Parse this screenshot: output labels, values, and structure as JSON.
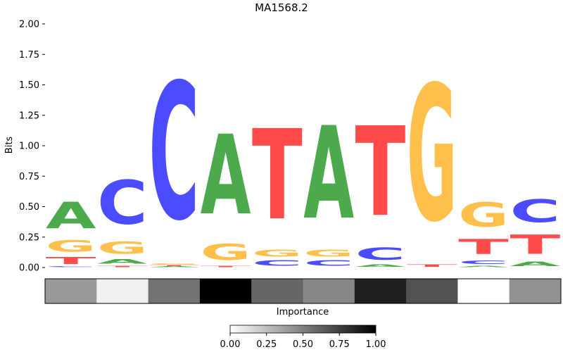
{
  "chart_data": {
    "type": "sequence-logo",
    "title": "MA1568.2",
    "ylabel": "Bits",
    "ylim": [
      0,
      2.0
    ],
    "yticks": [
      "0.00",
      "0.25",
      "0.50",
      "0.75",
      "1.00",
      "1.25",
      "1.50",
      "1.75",
      "2.00"
    ],
    "colors": {
      "A": "#4caa4c",
      "C": "#4b4bff",
      "G": "#ffbf4b",
      "T": "#ff4b4b"
    },
    "positions": [
      {
        "stack": [
          {
            "base": "C",
            "height": 0.01
          },
          {
            "base": "T",
            "height": 0.09
          },
          {
            "base": "G",
            "height": 0.15
          },
          {
            "base": "A",
            "height": 0.35
          }
        ]
      },
      {
        "stack": [
          {
            "base": "T",
            "height": 0.02
          },
          {
            "base": "A",
            "height": 0.06
          },
          {
            "base": "G",
            "height": 0.16
          },
          {
            "base": "C",
            "height": 0.58
          }
        ]
      },
      {
        "stack": [
          {
            "base": "A",
            "height": 0.01
          },
          {
            "base": "T",
            "height": 0.01
          },
          {
            "base": "G",
            "height": 0.02
          },
          {
            "base": "C",
            "height": 1.8
          }
        ]
      },
      {
        "stack": [
          {
            "base": "T",
            "height": 0.02
          },
          {
            "base": "G",
            "height": 0.21
          },
          {
            "base": "A",
            "height": 1.05
          }
        ]
      },
      {
        "stack": [
          {
            "base": "C",
            "height": 0.07
          },
          {
            "base": "G",
            "height": 0.09
          },
          {
            "base": "T",
            "height": 1.19
          }
        ]
      },
      {
        "stack": [
          {
            "base": "C",
            "height": 0.07
          },
          {
            "base": "G",
            "height": 0.09
          },
          {
            "base": "A",
            "height": 1.22
          }
        ]
      },
      {
        "stack": [
          {
            "base": "A",
            "height": 0.03
          },
          {
            "base": "C",
            "height": 0.16
          },
          {
            "base": "T",
            "height": 1.18
          }
        ]
      },
      {
        "stack": [
          {
            "base": "T",
            "height": 0.03
          },
          {
            "base": "G",
            "height": 1.79
          }
        ]
      },
      {
        "stack": [
          {
            "base": "A",
            "height": 0.02
          },
          {
            "base": "C",
            "height": 0.05
          },
          {
            "base": "T",
            "height": 0.2
          },
          {
            "base": "G",
            "height": 0.32
          }
        ]
      },
      {
        "stack": [
          {
            "base": "A",
            "height": 0.06
          },
          {
            "base": "T",
            "height": 0.25
          },
          {
            "base": "C",
            "height": 0.3
          }
        ]
      }
    ],
    "importance": {
      "label": "Importance",
      "values": [
        0.4,
        0.06,
        0.55,
        1.0,
        0.6,
        0.47,
        0.88,
        0.68,
        0.0,
        0.43
      ],
      "colorbar_ticks": [
        "0.00",
        "0.25",
        "0.50",
        "0.75",
        "1.00"
      ]
    }
  }
}
